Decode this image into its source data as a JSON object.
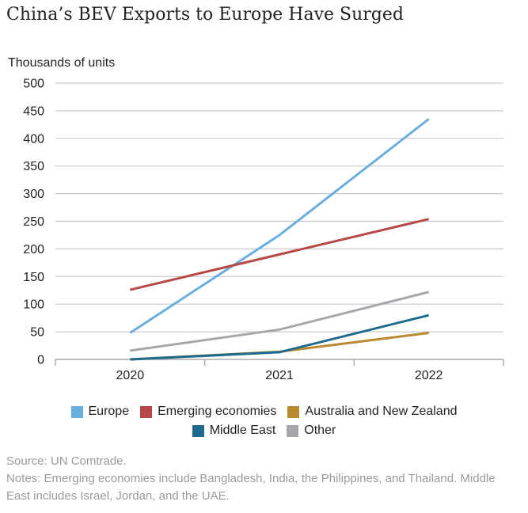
{
  "chart_data": {
    "type": "line",
    "title": "China’s BEV Exports to Europe Have Surged",
    "ylabel": "Thousands of units",
    "xlabel": "",
    "categories": [
      "2020",
      "2021",
      "2022"
    ],
    "ylim": [
      0,
      500
    ],
    "yticks": [
      0,
      50,
      100,
      150,
      200,
      250,
      300,
      350,
      400,
      450,
      500
    ],
    "grid": true,
    "legend_position": "bottom",
    "series": [
      {
        "name": "Europe",
        "color": "#6aaede",
        "values": [
          48,
          225,
          435
        ]
      },
      {
        "name": "Emerging economies",
        "color": "#b84747",
        "values": [
          126,
          190,
          254
        ]
      },
      {
        "name": "Australia and New Zealand",
        "color": "#b8892e",
        "values": [
          0,
          14,
          48
        ]
      },
      {
        "name": "Middle East",
        "color": "#1f6b8e",
        "values": [
          0,
          13,
          80
        ]
      },
      {
        "name": "Other",
        "color": "#a6a6ad",
        "values": [
          16,
          54,
          122
        ]
      }
    ]
  },
  "footer": {
    "source": "Source: UN Comtrade.",
    "notes": "Notes: Emerging economies include Bangladesh, India, the Philippines, and Thailand. Middle East includes Israel, Jordan, and the UAE."
  }
}
